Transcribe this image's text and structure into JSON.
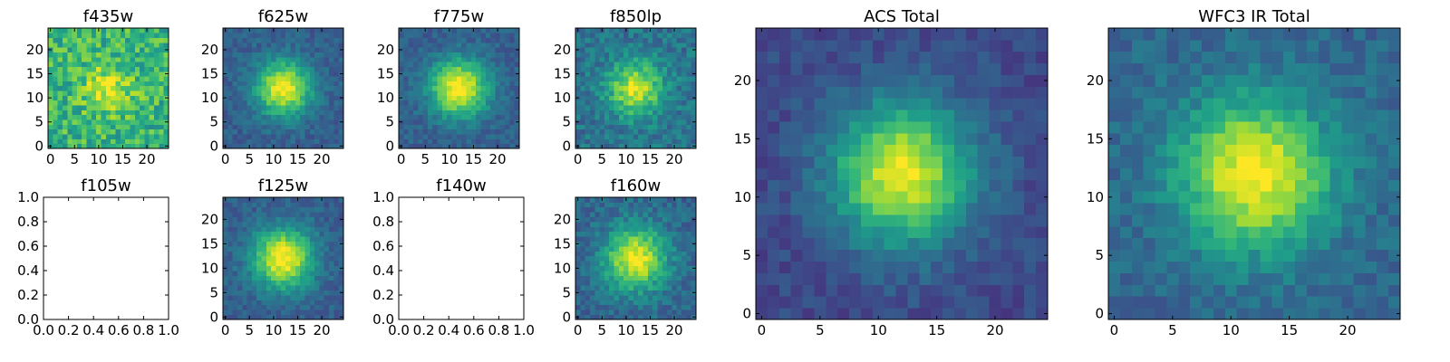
{
  "chart_data": [
    {
      "panel": "f435w",
      "type": "heatmap",
      "title": "f435w",
      "x_ticks": [
        "0",
        "5",
        "10",
        "15",
        "20"
      ],
      "y_ticks": [
        "0",
        "5",
        "10",
        "15",
        "20"
      ],
      "xlim": [
        -0.5,
        24.5
      ],
      "ylim": [
        -0.5,
        24.5
      ],
      "grid_size": 25,
      "center": [
        12,
        12
      ],
      "peak_sigma": 3.5,
      "peak_amplitude": 0.3,
      "background_level": 0.65,
      "noise": 0.18,
      "colormap": "viridis",
      "seed": 11,
      "empty": false
    },
    {
      "panel": "f625w",
      "type": "heatmap",
      "title": "f625w",
      "x_ticks": [
        "0",
        "5",
        "10",
        "15",
        "20"
      ],
      "y_ticks": [
        "0",
        "5",
        "10",
        "15",
        "20"
      ],
      "xlim": [
        -0.5,
        24.5
      ],
      "ylim": [
        -0.5,
        24.5
      ],
      "grid_size": 25,
      "center": [
        12,
        12
      ],
      "peak_sigma": 4,
      "peak_amplitude": 0.7,
      "background_level": 0.3,
      "noise": 0.08,
      "colormap": "viridis",
      "seed": 23,
      "empty": false
    },
    {
      "panel": "f775w",
      "type": "heatmap",
      "title": "f775w",
      "x_ticks": [
        "0",
        "5",
        "10",
        "15",
        "20"
      ],
      "y_ticks": [
        "0",
        "5",
        "10",
        "15",
        "20"
      ],
      "xlim": [
        -0.5,
        24.5
      ],
      "ylim": [
        -0.5,
        24.5
      ],
      "grid_size": 25,
      "center": [
        12,
        12
      ],
      "peak_sigma": 4.2,
      "peak_amplitude": 0.72,
      "background_level": 0.3,
      "noise": 0.08,
      "colormap": "viridis",
      "seed": 37,
      "empty": false
    },
    {
      "panel": "f850lp",
      "type": "heatmap",
      "title": "f850lp",
      "x_ticks": [
        "0",
        "5",
        "10",
        "15",
        "20"
      ],
      "y_ticks": [
        "0",
        "5",
        "10",
        "15",
        "20"
      ],
      "xlim": [
        -0.5,
        24.5
      ],
      "ylim": [
        -0.5,
        24.5
      ],
      "grid_size": 25,
      "center": [
        12,
        12
      ],
      "peak_sigma": 4,
      "peak_amplitude": 0.55,
      "background_level": 0.38,
      "noise": 0.12,
      "colormap": "viridis",
      "seed": 41,
      "empty": false
    },
    {
      "panel": "f105w",
      "type": "heatmap",
      "title": "f105w",
      "x_ticks": [
        "0.0",
        "0.2",
        "0.4",
        "0.6",
        "0.8",
        "1.0"
      ],
      "y_ticks": [
        "0.0",
        "0.2",
        "0.4",
        "0.6",
        "0.8",
        "1.0"
      ],
      "xlim": [
        0,
        1
      ],
      "ylim": [
        0,
        1
      ],
      "empty": true
    },
    {
      "panel": "f125w",
      "type": "heatmap",
      "title": "f125w",
      "x_ticks": [
        "0",
        "5",
        "10",
        "15",
        "20"
      ],
      "y_ticks": [
        "0",
        "5",
        "10",
        "15",
        "20"
      ],
      "xlim": [
        -0.5,
        24.5
      ],
      "ylim": [
        -0.5,
        24.5
      ],
      "grid_size": 25,
      "center": [
        12,
        12
      ],
      "peak_sigma": 4.3,
      "peak_amplitude": 0.72,
      "background_level": 0.3,
      "noise": 0.08,
      "colormap": "viridis",
      "seed": 53,
      "empty": false
    },
    {
      "panel": "f140w",
      "type": "heatmap",
      "title": "f140w",
      "x_ticks": [
        "0.0",
        "0.2",
        "0.4",
        "0.6",
        "0.8",
        "1.0"
      ],
      "y_ticks": [
        "0.0",
        "0.2",
        "0.4",
        "0.6",
        "0.8",
        "1.0"
      ],
      "xlim": [
        0,
        1
      ],
      "ylim": [
        0,
        1
      ],
      "empty": true
    },
    {
      "panel": "f160w",
      "type": "heatmap",
      "title": "f160w",
      "x_ticks": [
        "0",
        "5",
        "10",
        "15",
        "20"
      ],
      "y_ticks": [
        "0",
        "5",
        "10",
        "15",
        "20"
      ],
      "xlim": [
        -0.5,
        24.5
      ],
      "ylim": [
        -0.5,
        24.5
      ],
      "grid_size": 25,
      "center": [
        12,
        12
      ],
      "peak_sigma": 4.5,
      "peak_amplitude": 0.65,
      "background_level": 0.33,
      "noise": 0.1,
      "colormap": "viridis",
      "seed": 67,
      "empty": false
    },
    {
      "panel": "acs_total",
      "type": "heatmap",
      "title": "ACS Total",
      "x_ticks": [
        "0",
        "5",
        "10",
        "15",
        "20"
      ],
      "y_ticks": [
        "0",
        "5",
        "10",
        "15",
        "20"
      ],
      "xlim": [
        -0.5,
        24.5
      ],
      "ylim": [
        -0.5,
        24.5
      ],
      "grid_size": 25,
      "center": [
        12,
        12
      ],
      "peak_sigma": 4.2,
      "peak_amplitude": 0.75,
      "background_level": 0.22,
      "noise": 0.07,
      "colormap": "viridis",
      "seed": 79,
      "empty": false
    },
    {
      "panel": "wfc3_ir_total",
      "type": "heatmap",
      "title": "WFC3 IR Total",
      "x_ticks": [
        "0",
        "5",
        "10",
        "15",
        "20"
      ],
      "y_ticks": [
        "0",
        "5",
        "10",
        "15",
        "20"
      ],
      "xlim": [
        -0.5,
        24.5
      ],
      "ylim": [
        -0.5,
        24.5
      ],
      "grid_size": 25,
      "center": [
        12,
        12
      ],
      "peak_sigma": 4.5,
      "peak_amplitude": 0.68,
      "background_level": 0.33,
      "noise": 0.08,
      "colormap": "viridis",
      "seed": 97,
      "empty": false
    }
  ]
}
